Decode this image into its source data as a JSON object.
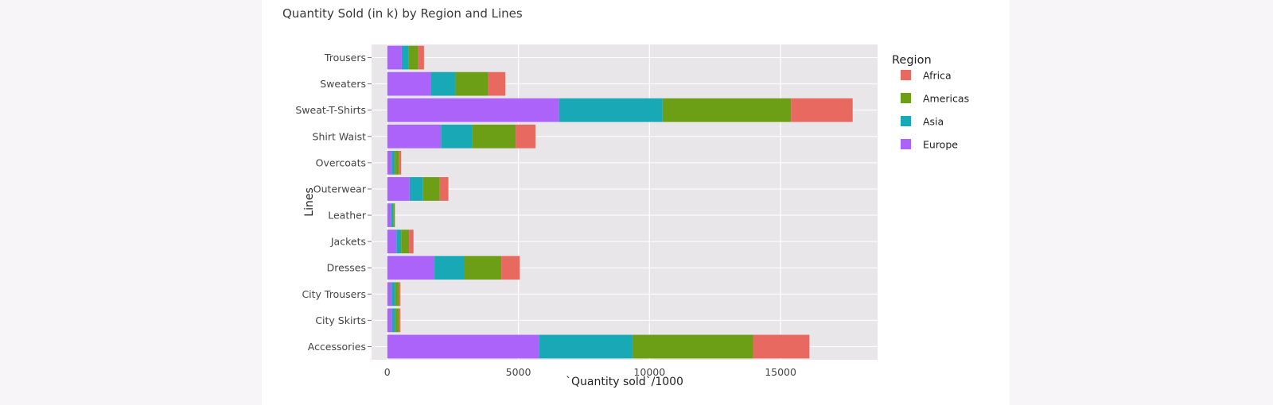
{
  "chart_data": {
    "type": "bar",
    "orientation": "horizontal",
    "barmode": "stack",
    "title": "Quantity Sold (in k) by Region and Lines",
    "xlabel": "`Quantity sold`/1000",
    "ylabel": "Lines",
    "xlim": [
      -600,
      18700
    ],
    "x_ticks": [
      0,
      5000,
      10000,
      15000
    ],
    "grid": true,
    "legend_title": "Region",
    "legend_position": "right",
    "categories": [
      "Accessories",
      "City Skirts",
      "City Trousers",
      "Dresses",
      "Jackets",
      "Leather",
      "Outerwear",
      "Overcoats",
      "Shirt Waist",
      "Sweat-T-Shirts",
      "Sweaters",
      "Trousers"
    ],
    "series": [
      {
        "name": "Europe",
        "color": "#ab63fa",
        "values": [
          5800,
          180,
          170,
          1800,
          350,
          150,
          850,
          170,
          2050,
          6550,
          1650,
          550
        ]
      },
      {
        "name": "Asia",
        "color": "#19a8b5",
        "values": [
          3550,
          120,
          130,
          1150,
          180,
          80,
          500,
          120,
          1200,
          3950,
          950,
          250
        ]
      },
      {
        "name": "Americas",
        "color": "#6c9f15",
        "values": [
          4600,
          140,
          140,
          1400,
          300,
          60,
          650,
          150,
          1650,
          4900,
          1250,
          380
        ]
      },
      {
        "name": "Africa",
        "color": "#e8695f",
        "values": [
          2150,
          60,
          60,
          700,
          170,
          0,
          330,
          90,
          750,
          2350,
          650,
          220
        ]
      }
    ]
  }
}
